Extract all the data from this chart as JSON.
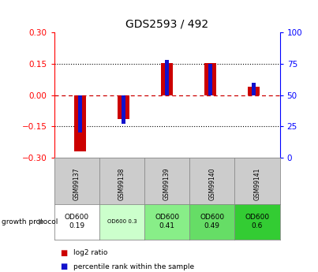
{
  "title": "GDS2593 / 492",
  "samples": [
    "GSM99137",
    "GSM99138",
    "GSM99139",
    "GSM99140",
    "GSM99141"
  ],
  "log2_ratios": [
    -0.27,
    -0.115,
    0.155,
    0.155,
    0.04
  ],
  "percentile_ranks": [
    20,
    27,
    78,
    75,
    60
  ],
  "ylim_left": [
    -0.3,
    0.3
  ],
  "ylim_right": [
    0,
    100
  ],
  "yticks_left": [
    -0.3,
    -0.15,
    0.0,
    0.15,
    0.3
  ],
  "yticks_right": [
    0,
    25,
    50,
    75,
    100
  ],
  "bar_color_red": "#cc0000",
  "bar_color_blue": "#1111cc",
  "zero_line_color": "#cc0000",
  "protocol_labels": [
    "OD600\n0.19",
    "OD600 0.3",
    "OD600\n0.41",
    "OD600\n0.49",
    "OD600\n0.6"
  ],
  "proto_colors": [
    "#ffffff",
    "#ccffcc",
    "#88ee88",
    "#66dd66",
    "#33cc33"
  ],
  "sample_bg_color": "#cccccc",
  "legend_red": "log2 ratio",
  "legend_blue": "percentile rank within the sample",
  "growth_protocol_label": "growth protocol"
}
